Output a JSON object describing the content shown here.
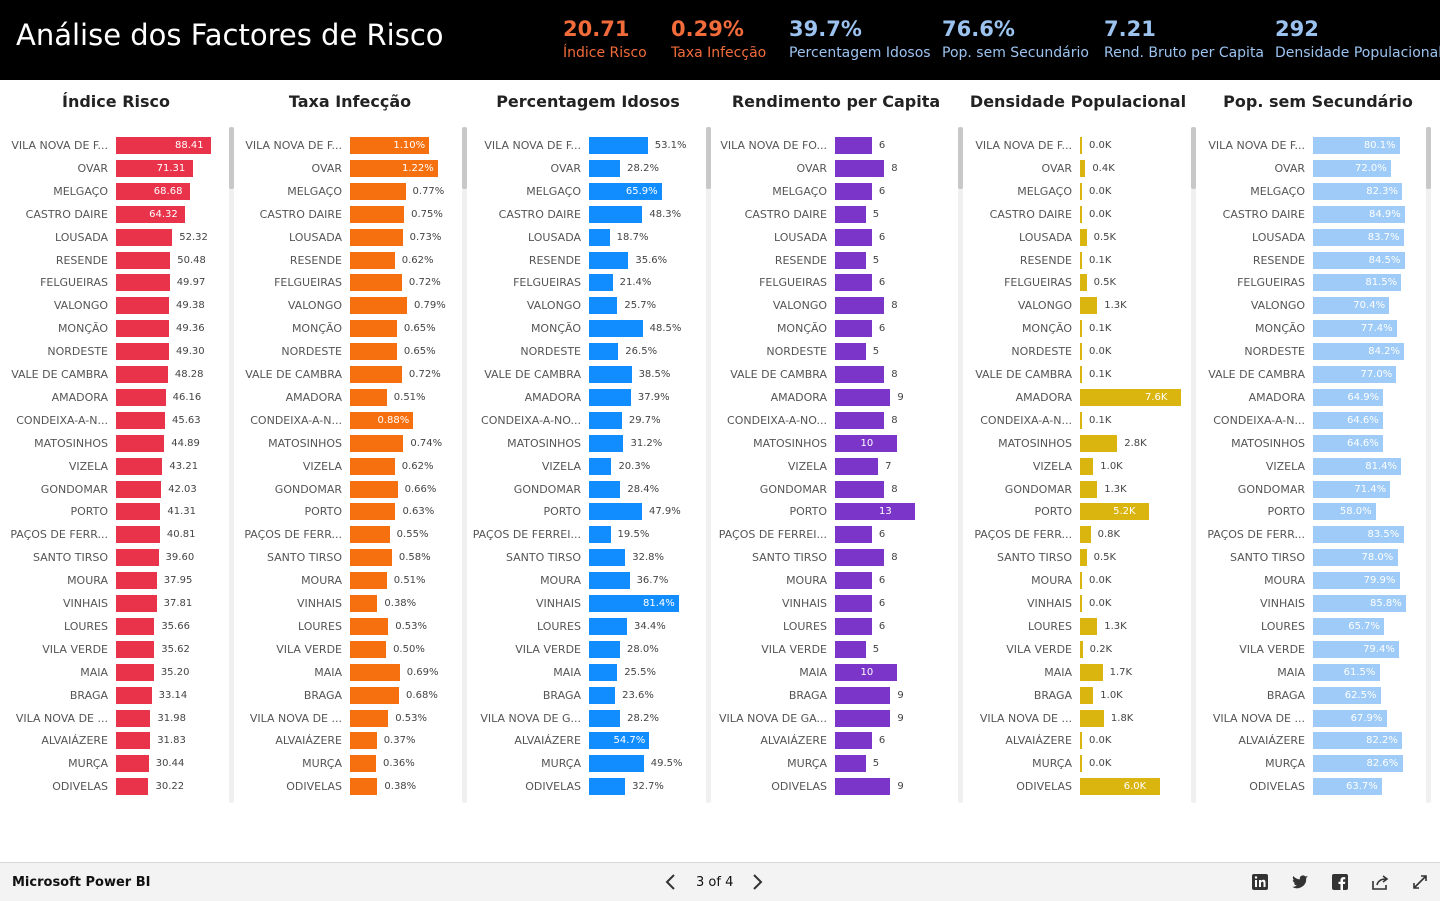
{
  "header": {
    "title": "Análise dos Factores de Risco",
    "kpis": [
      {
        "value": "20.71",
        "label": "Índice Risco",
        "color": "#f26b3a"
      },
      {
        "value": "0.29%",
        "label": "Taxa Infecção",
        "color": "#f26b3a"
      },
      {
        "value": "39.7%",
        "label": "Percentagem Idosos",
        "color": "#9cc3f0"
      },
      {
        "value": "76.6%",
        "label": "Pop. sem Secundário",
        "color": "#9cc3f0"
      },
      {
        "value": "7.21",
        "label": "Rend. Bruto per Capita",
        "color": "#9cc3f0"
      },
      {
        "value": "292",
        "label": "Densidade Populacional",
        "color": "#9cc3f0"
      }
    ]
  },
  "chart_data": [
    {
      "type": "bar",
      "title": "Índice Risco",
      "color": "#e8334a",
      "max": 88.41,
      "categories": [
        "VILA NOVA DE F...",
        "OVAR",
        "MELGAÇO",
        "CASTRO DAIRE",
        "LOUSADA",
        "RESENDE",
        "FELGUEIRAS",
        "VALONGO",
        "MONÇÃO",
        "NORDESTE",
        "VALE DE CAMBRA",
        "AMADORA",
        "CONDEIXA-A-N...",
        "MATOSINHOS",
        "VIZELA",
        "GONDOMAR",
        "PORTO",
        "PAÇOS DE FERR...",
        "SANTO TIRSO",
        "MOURA",
        "VINHAIS",
        "LOURES",
        "VILA VERDE",
        "MAIA",
        "BRAGA",
        "VILA NOVA DE ...",
        "ALVAIÁZERE",
        "MURÇA",
        "ODIVELAS"
      ],
      "values": [
        88.41,
        71.31,
        68.68,
        64.32,
        52.32,
        50.48,
        49.97,
        49.38,
        49.36,
        49.3,
        48.28,
        46.16,
        45.63,
        44.89,
        43.21,
        42.03,
        41.31,
        40.81,
        39.6,
        37.95,
        37.81,
        35.66,
        35.62,
        35.2,
        33.14,
        31.98,
        31.83,
        30.44,
        30.22
      ],
      "labels": [
        "88.41",
        "71.31",
        "68.68",
        "64.32",
        "52.32",
        "50.48",
        "49.97",
        "49.38",
        "49.36",
        "49.30",
        "48.28",
        "46.16",
        "45.63",
        "44.89",
        "43.21",
        "42.03",
        "41.31",
        "40.81",
        "39.60",
        "37.95",
        "37.81",
        "35.66",
        "35.62",
        "35.20",
        "33.14",
        "31.98",
        "31.83",
        "30.44",
        "30.22"
      ]
    },
    {
      "type": "bar",
      "title": "Taxa Infecção",
      "color": "#f7700f",
      "max": 1.22,
      "categories": [
        "VILA NOVA DE F...",
        "OVAR",
        "MELGAÇO",
        "CASTRO DAIRE",
        "LOUSADA",
        "RESENDE",
        "FELGUEIRAS",
        "VALONGO",
        "MONÇÃO",
        "NORDESTE",
        "VALE DE CAMBRA",
        "AMADORA",
        "CONDEIXA-A-N...",
        "MATOSINHOS",
        "VIZELA",
        "GONDOMAR",
        "PORTO",
        "PAÇOS DE FERR...",
        "SANTO TIRSO",
        "MOURA",
        "VINHAIS",
        "LOURES",
        "VILA VERDE",
        "MAIA",
        "BRAGA",
        "VILA NOVA DE ...",
        "ALVAIÁZERE",
        "MURÇA",
        "ODIVELAS"
      ],
      "values": [
        1.1,
        1.22,
        0.77,
        0.75,
        0.73,
        0.62,
        0.72,
        0.79,
        0.65,
        0.65,
        0.72,
        0.51,
        0.88,
        0.74,
        0.62,
        0.66,
        0.63,
        0.55,
        0.58,
        0.51,
        0.38,
        0.53,
        0.5,
        0.69,
        0.68,
        0.53,
        0.37,
        0.36,
        0.38
      ],
      "labels": [
        "1.10%",
        "1.22%",
        "0.77%",
        "0.75%",
        "0.73%",
        "0.62%",
        "0.72%",
        "0.79%",
        "0.65%",
        "0.65%",
        "0.72%",
        "0.51%",
        "0.88%",
        "0.74%",
        "0.62%",
        "0.66%",
        "0.63%",
        "0.55%",
        "0.58%",
        "0.51%",
        "0.38%",
        "0.53%",
        "0.50%",
        "0.69%",
        "0.68%",
        "0.53%",
        "0.37%",
        "0.36%",
        "0.38%"
      ]
    },
    {
      "type": "bar",
      "title": "Percentagem Idosos",
      "color": "#118dff",
      "max": 81.4,
      "categories": [
        "VILA NOVA DE F...",
        "OVAR",
        "MELGAÇO",
        "CASTRO DAIRE",
        "LOUSADA",
        "RESENDE",
        "FELGUEIRAS",
        "VALONGO",
        "MONÇÃO",
        "NORDESTE",
        "VALE DE CAMBRA",
        "AMADORA",
        "CONDEIXA-A-NO...",
        "MATOSINHOS",
        "VIZELA",
        "GONDOMAR",
        "PORTO",
        "PAÇOS DE FERREI...",
        "SANTO TIRSO",
        "MOURA",
        "VINHAIS",
        "LOURES",
        "VILA VERDE",
        "MAIA",
        "BRAGA",
        "VILA NOVA DE G...",
        "ALVAIÁZERE",
        "MURÇA",
        "ODIVELAS"
      ],
      "values": [
        53.1,
        28.2,
        65.9,
        48.3,
        18.7,
        35.6,
        21.4,
        25.7,
        48.5,
        26.5,
        38.5,
        37.9,
        29.7,
        31.2,
        20.3,
        28.4,
        47.9,
        19.5,
        32.8,
        36.7,
        81.4,
        34.4,
        28.0,
        25.5,
        23.6,
        28.2,
        54.7,
        49.5,
        32.7
      ],
      "labels": [
        "53.1%",
        "28.2%",
        "65.9%",
        "48.3%",
        "18.7%",
        "35.6%",
        "21.4%",
        "25.7%",
        "48.5%",
        "26.5%",
        "38.5%",
        "37.9%",
        "29.7%",
        "31.2%",
        "20.3%",
        "28.4%",
        "47.9%",
        "19.5%",
        "32.8%",
        "36.7%",
        "81.4%",
        "34.4%",
        "28.0%",
        "25.5%",
        "23.6%",
        "28.2%",
        "54.7%",
        "49.5%",
        "32.7%"
      ]
    },
    {
      "type": "bar",
      "title": "Rendimento per Capita",
      "color": "#7b35c9",
      "max": 13,
      "categories": [
        "VILA NOVA DE FO...",
        "OVAR",
        "MELGAÇO",
        "CASTRO DAIRE",
        "LOUSADA",
        "RESENDE",
        "FELGUEIRAS",
        "VALONGO",
        "MONÇÃO",
        "NORDESTE",
        "VALE DE CAMBRA",
        "AMADORA",
        "CONDEIXA-A-NO...",
        "MATOSINHOS",
        "VIZELA",
        "GONDOMAR",
        "PORTO",
        "PAÇOS DE FERREI...",
        "SANTO TIRSO",
        "MOURA",
        "VINHAIS",
        "LOURES",
        "VILA VERDE",
        "MAIA",
        "BRAGA",
        "VILA NOVA DE GA...",
        "ALVAIÁZERE",
        "MURÇA",
        "ODIVELAS"
      ],
      "values": [
        6,
        8,
        6,
        5,
        6,
        5,
        6,
        8,
        6,
        5,
        8,
        9,
        8,
        10,
        7,
        8,
        13,
        6,
        8,
        6,
        6,
        6,
        5,
        10,
        9,
        9,
        6,
        5,
        9
      ],
      "labels": [
        "6",
        "8",
        "6",
        "5",
        "6",
        "5",
        "6",
        "8",
        "6",
        "5",
        "8",
        "9",
        "8",
        "10",
        "7",
        "8",
        "13",
        "6",
        "8",
        "6",
        "6",
        "6",
        "5",
        "10",
        "9",
        "9",
        "6",
        "5",
        "9"
      ]
    },
    {
      "type": "bar",
      "title": "Densidade Populacional",
      "color": "#dab40f",
      "max": 7.6,
      "categories": [
        "VILA NOVA DE F...",
        "OVAR",
        "MELGAÇO",
        "CASTRO DAIRE",
        "LOUSADA",
        "RESENDE",
        "FELGUEIRAS",
        "VALONGO",
        "MONÇÃO",
        "NORDESTE",
        "VALE DE CAMBRA",
        "AMADORA",
        "CONDEIXA-A-N...",
        "MATOSINHOS",
        "VIZELA",
        "GONDOMAR",
        "PORTO",
        "PAÇOS DE FERR...",
        "SANTO TIRSO",
        "MOURA",
        "VINHAIS",
        "LOURES",
        "VILA VERDE",
        "MAIA",
        "BRAGA",
        "VILA NOVA DE ...",
        "ALVAIÁZERE",
        "MURÇA",
        "ODIVELAS"
      ],
      "values": [
        0.0,
        0.4,
        0.0,
        0.0,
        0.5,
        0.1,
        0.5,
        1.3,
        0.1,
        0.0,
        0.1,
        7.6,
        0.1,
        2.8,
        1.0,
        1.3,
        5.2,
        0.8,
        0.5,
        0.0,
        0.0,
        1.3,
        0.2,
        1.7,
        1.0,
        1.8,
        0.0,
        0.0,
        6.0
      ],
      "labels": [
        "0.0K",
        "0.4K",
        "0.0K",
        "0.0K",
        "0.5K",
        "0.1K",
        "0.5K",
        "1.3K",
        "0.1K",
        "0.0K",
        "0.1K",
        "7.6K",
        "0.1K",
        "2.8K",
        "1.0K",
        "1.3K",
        "5.2K",
        "0.8K",
        "0.5K",
        "0.0K",
        "0.0K",
        "1.3K",
        "0.2K",
        "1.7K",
        "1.0K",
        "1.8K",
        "0.0K",
        "0.0K",
        "6.0K"
      ]
    },
    {
      "type": "bar",
      "title": "Pop. sem Secundário",
      "color": "#9ecbf7",
      "max": 85.8,
      "categories": [
        "VILA NOVA DE F...",
        "OVAR",
        "MELGAÇO",
        "CASTRO DAIRE",
        "LOUSADA",
        "RESENDE",
        "FELGUEIRAS",
        "VALONGO",
        "MONÇÃO",
        "NORDESTE",
        "VALE DE CAMBRA",
        "AMADORA",
        "CONDEIXA-A-N...",
        "MATOSINHOS",
        "VIZELA",
        "GONDOMAR",
        "PORTO",
        "PAÇOS DE FERR...",
        "SANTO TIRSO",
        "MOURA",
        "VINHAIS",
        "LOURES",
        "VILA VERDE",
        "MAIA",
        "BRAGA",
        "VILA NOVA DE ...",
        "ALVAIÁZERE",
        "MURÇA",
        "ODIVELAS"
      ],
      "values": [
        80.1,
        72.0,
        82.3,
        84.9,
        83.7,
        84.5,
        81.5,
        70.4,
        77.4,
        84.2,
        77.0,
        64.9,
        64.6,
        64.6,
        81.4,
        71.4,
        58.0,
        83.5,
        78.0,
        79.9,
        85.8,
        65.7,
        79.4,
        61.5,
        62.5,
        67.9,
        82.2,
        82.6,
        63.7
      ],
      "labels": [
        "80.1%",
        "72.0%",
        "82.3%",
        "84.9%",
        "83.7%",
        "84.5%",
        "81.5%",
        "70.4%",
        "77.4%",
        "84.2%",
        "77.0%",
        "64.9%",
        "64.6%",
        "64.6%",
        "81.4%",
        "71.4%",
        "58.0%",
        "83.5%",
        "78.0%",
        "79.9%",
        "85.8%",
        "65.7%",
        "79.4%",
        "61.5%",
        "62.5%",
        "67.9%",
        "82.2%",
        "82.6%",
        "63.7%"
      ]
    }
  ],
  "footer": {
    "brand": "Microsoft Power BI",
    "page": "3 of 4",
    "prev_icon": "chevron-left-icon",
    "next_icon": "chevron-right-icon",
    "share_icons": [
      "linkedin-icon",
      "twitter-icon",
      "facebook-icon",
      "share-icon",
      "fullscreen-icon"
    ]
  }
}
